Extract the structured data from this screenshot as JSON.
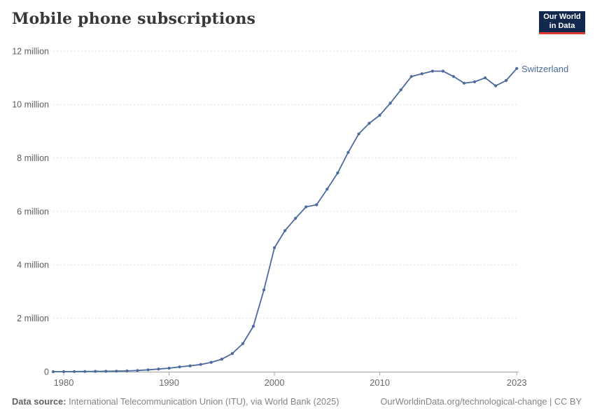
{
  "header": {
    "title": "Mobile phone subscriptions"
  },
  "logo": {
    "line1": "Our World",
    "line2": "in Data"
  },
  "chart_data": {
    "type": "line",
    "title": "Mobile phone subscriptions",
    "series": [
      {
        "name": "Switzerland",
        "x": [
          1979,
          1980,
          1981,
          1982,
          1983,
          1984,
          1985,
          1986,
          1987,
          1988,
          1989,
          1990,
          1991,
          1992,
          1993,
          1994,
          1995,
          1996,
          1997,
          1998,
          1999,
          2000,
          2001,
          2002,
          2003,
          2004,
          2005,
          2006,
          2007,
          2008,
          2009,
          2010,
          2011,
          2012,
          2013,
          2014,
          2015,
          2016,
          2017,
          2018,
          2019,
          2020,
          2021,
          2022,
          2023
        ],
        "values_millions": [
          0.001,
          0.003,
          0.005,
          0.008,
          0.012,
          0.016,
          0.022,
          0.03,
          0.045,
          0.07,
          0.1,
          0.13,
          0.18,
          0.22,
          0.27,
          0.35,
          0.47,
          0.68,
          1.05,
          1.7,
          3.06,
          4.64,
          5.28,
          5.74,
          6.17,
          6.25,
          6.83,
          7.44,
          8.21,
          8.9,
          9.3,
          9.6,
          10.05,
          10.55,
          11.05,
          11.15,
          11.25,
          11.25,
          11.05,
          10.8,
          10.85,
          11.0,
          10.7,
          10.9,
          11.35
        ]
      }
    ],
    "unit": "subscriptions",
    "xlabel": "",
    "ylabel": "",
    "xlim": [
      1979,
      2023
    ],
    "ylim": [
      0,
      12
    ],
    "grid": "horizontal-dashed",
    "legend_position": "end-of-line",
    "y_ticks": [
      {
        "value": 0,
        "label": "0"
      },
      {
        "value": 2,
        "label": "2 million"
      },
      {
        "value": 4,
        "label": "4 million"
      },
      {
        "value": 6,
        "label": "6 million"
      },
      {
        "value": 8,
        "label": "8 million"
      },
      {
        "value": 10,
        "label": "10 million"
      },
      {
        "value": 12,
        "label": "12 million"
      }
    ],
    "x_ticks": [
      {
        "value": 1980,
        "label": "1980"
      },
      {
        "value": 1990,
        "label": "1990"
      },
      {
        "value": 2000,
        "label": "2000"
      },
      {
        "value": 2010,
        "label": "2010"
      },
      {
        "value": 2023,
        "label": "2023"
      }
    ]
  },
  "footer": {
    "source_label": "Data source:",
    "source_text": " International Telecommunication Union (ITU), via World Bank (2025)",
    "right_text": "OurWorldinData.org/technological-change | CC BY"
  },
  "colors": {
    "line": "#4C6B9E",
    "series_label": "#4C6B9E",
    "grid": "#DDDDDD",
    "axis": "#A3A3A3",
    "y_tick_text": "#5E5E5E",
    "x_tick_text": "#6B6B6B",
    "logo_bg": "#12294D",
    "logo_accent": "#DC3A33"
  }
}
